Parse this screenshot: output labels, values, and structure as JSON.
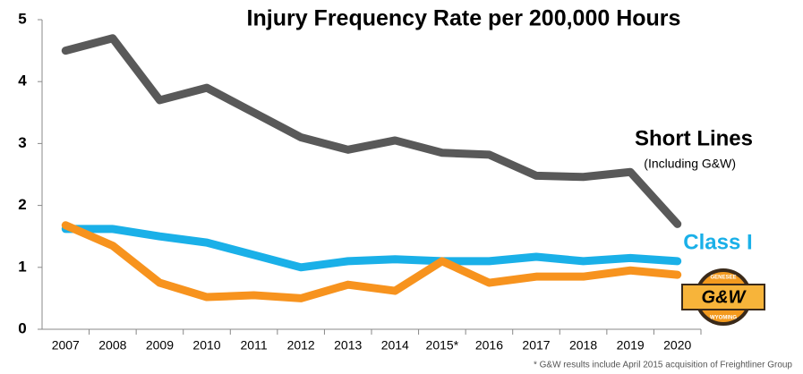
{
  "chart_data": {
    "type": "line",
    "title": "Injury Frequency Rate per 200,000 Hours",
    "categories": [
      "2007",
      "2008",
      "2009",
      "2010",
      "2011",
      "2012",
      "2013",
      "2014",
      "2015*",
      "2016",
      "2017",
      "2018",
      "2019",
      "2020"
    ],
    "series": [
      {
        "name": "Short Lines",
        "color": "#595959",
        "values": [
          4.5,
          4.7,
          3.7,
          3.9,
          3.5,
          3.1,
          2.9,
          3.05,
          2.85,
          2.82,
          2.48,
          2.46,
          2.54,
          1.7
        ]
      },
      {
        "name": "Class I",
        "color": "#1ab0e8",
        "values": [
          1.62,
          1.62,
          1.5,
          1.4,
          1.2,
          1.0,
          1.1,
          1.13,
          1.1,
          1.1,
          1.17,
          1.1,
          1.15,
          1.1
        ]
      },
      {
        "name": "G&W",
        "color": "#f7931e",
        "values": [
          1.68,
          1.35,
          0.75,
          0.52,
          0.55,
          0.5,
          0.72,
          0.62,
          1.1,
          0.75,
          0.85,
          0.85,
          0.95,
          0.88
        ]
      }
    ],
    "annotation": "(Including G&W)",
    "logo": {
      "top": "GENESEE",
      "bottom": "WYOMING"
    },
    "footnote": "* G&W results include April 2015 acquisition of Freightliner Group",
    "ylim": [
      0,
      5
    ],
    "yticks": [
      0,
      1,
      2,
      3,
      4,
      5
    ],
    "grid": false
  }
}
